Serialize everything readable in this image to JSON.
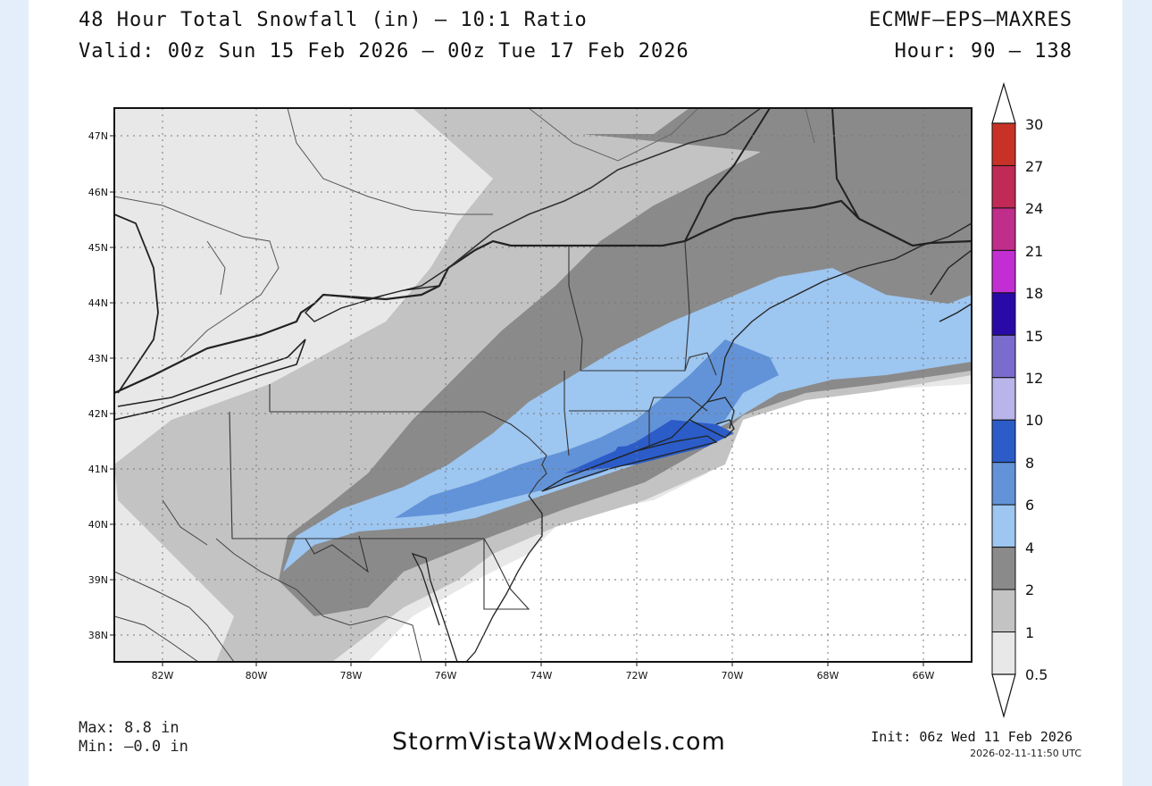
{
  "header": {
    "title": "48 Hour Total Snowfall (in) – 10:1 Ratio",
    "valid": "Valid: 00z Sun 15 Feb 2026 – 00z Tue 17 Feb 2026",
    "model": "ECMWF–EPS–MAXRES",
    "hour": "Hour: 90 – 138"
  },
  "map": {
    "lat_labels": [
      "47N",
      "46N",
      "45N",
      "44N",
      "43N",
      "42N",
      "41N",
      "40N",
      "39N",
      "38N"
    ],
    "lon_labels": [
      "82W",
      "80W",
      "78W",
      "76W",
      "74W",
      "72W",
      "70W",
      "68W",
      "66W"
    ]
  },
  "colorbar": {
    "labels": [
      "30",
      "27",
      "24",
      "21",
      "18",
      "15",
      "12",
      "10",
      "8",
      "6",
      "4",
      "2",
      "1",
      "0.5"
    ],
    "colors": [
      "#c83226",
      "#c02a55",
      "#c02d8a",
      "#c22ed2",
      "#2a0aa6",
      "#7a6ccc",
      "#b9b4ea",
      "#2b5cc8",
      "#6293d8",
      "#9dc6f0",
      "#8a8a8a",
      "#c3c3c3",
      "#e8e8e8"
    ]
  },
  "footer": {
    "max": "Max: 8.8 in",
    "min": "Min: –0.0 in",
    "brand": "StormVistaWxModels.com",
    "init": "Init: 06z Wed 11 Feb 2026",
    "timestamp": "2026-02-11-11:50 UTC"
  }
}
